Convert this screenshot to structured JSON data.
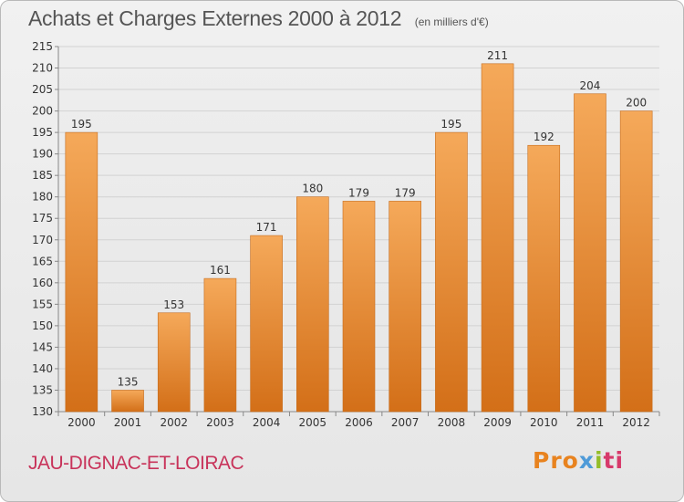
{
  "header": {
    "title": "Achats et Charges Externes 2000 à 2012",
    "subtitle": "(en milliers d'€)"
  },
  "footer": {
    "commune": "JAU-DIGNAC-ET-LOIRAC",
    "logo": {
      "p1": "Pro",
      "p2": "x",
      "p3": "i",
      "p4": "ti"
    }
  },
  "colors": {
    "bar_top": "#f5a95a",
    "bar_bottom": "#d36f18",
    "commune_text": "#c8335a"
  },
  "chart_data": {
    "type": "bar",
    "title": "Achats et Charges Externes 2000 à 2012",
    "subtitle": "(en milliers d'€)",
    "categories": [
      "2000",
      "2001",
      "2002",
      "2003",
      "2004",
      "2005",
      "2006",
      "2007",
      "2008",
      "2009",
      "2010",
      "2011",
      "2012"
    ],
    "values": [
      195,
      135,
      153,
      161,
      171,
      180,
      179,
      179,
      195,
      211,
      192,
      204,
      200
    ],
    "ylim": [
      130,
      215
    ],
    "yticks": [
      130,
      135,
      140,
      145,
      150,
      155,
      160,
      165,
      170,
      175,
      180,
      185,
      190,
      195,
      200,
      205,
      210,
      215
    ],
    "xlabel": "",
    "ylabel": "",
    "grid": true,
    "legend": "none"
  }
}
